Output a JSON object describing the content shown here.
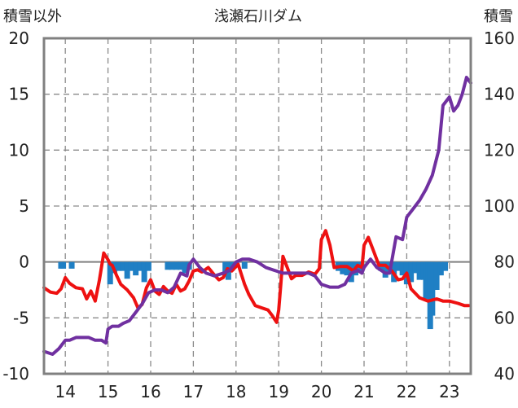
{
  "chart_data": {
    "type": "line",
    "title": "浅瀬石川ダム",
    "left_axis_label": "積雪以外",
    "right_axis_label": "積雪",
    "x_tick_labels": [
      "14",
      "15",
      "16",
      "17",
      "18",
      "19",
      "20",
      "21",
      "22",
      "23"
    ],
    "xlim": [
      13.5,
      23.5
    ],
    "left_ylim": [
      -10,
      20
    ],
    "left_ticks": [
      20,
      15,
      10,
      5,
      0,
      -5,
      -10
    ],
    "right_ylim": [
      40,
      160
    ],
    "right_ticks": [
      160,
      140,
      120,
      100,
      80,
      60,
      40
    ],
    "grid": true,
    "colors": {
      "red_series": "#ee1111",
      "purple_series": "#7030a0",
      "bars": "#1f7fc4",
      "frame": "#808080",
      "grid": "#8a8a8a"
    },
    "series": [
      {
        "axis": "left",
        "color": "#ee1111",
        "x": [
          13.5,
          13.65,
          13.8,
          13.9,
          14.0,
          14.1,
          14.25,
          14.4,
          14.5,
          14.6,
          14.7,
          14.8,
          14.9,
          15.0,
          15.05,
          15.1,
          15.2,
          15.3,
          15.45,
          15.6,
          15.7,
          15.8,
          15.9,
          16.0,
          16.1,
          16.2,
          16.3,
          16.4,
          16.5,
          16.6,
          16.7,
          16.8,
          16.9,
          17.0,
          17.1,
          17.2,
          17.35,
          17.5,
          17.6,
          17.7,
          17.8,
          17.9,
          18.0,
          18.05,
          18.1,
          18.2,
          18.3,
          18.45,
          18.6,
          18.75,
          18.85,
          18.95,
          19.0,
          19.05,
          19.1,
          19.2,
          19.3,
          19.4,
          19.55,
          19.7,
          19.85,
          19.95,
          20.0,
          20.1,
          20.2,
          20.3,
          20.45,
          20.6,
          20.75,
          20.85,
          20.95,
          21.0,
          21.1,
          21.2,
          21.35,
          21.5,
          21.65,
          21.8,
          21.9,
          22.0,
          22.1,
          22.3,
          22.5,
          22.7,
          22.85,
          23.0,
          23.2,
          23.35,
          23.45
        ],
        "y": [
          -2.3,
          -2.7,
          -2.8,
          -2.4,
          -1.4,
          -1.9,
          -2.3,
          -2.4,
          -3.3,
          -2.6,
          -3.5,
          -1.6,
          0.8,
          0.2,
          -0.2,
          -0.3,
          -1.2,
          -2.0,
          -2.5,
          -3.2,
          -4.1,
          -3.8,
          -2.3,
          -1.6,
          -2.6,
          -2.9,
          -2.2,
          -2.6,
          -2.8,
          -2.0,
          -2.6,
          -2.4,
          -1.7,
          -0.8,
          -0.7,
          -0.9,
          -0.5,
          -1.2,
          -1.6,
          -1.4,
          -0.6,
          -0.8,
          -0.4,
          -0.2,
          -0.8,
          -2.0,
          -2.9,
          -3.9,
          -4.1,
          -4.3,
          -4.8,
          -5.4,
          -4.3,
          -2.0,
          0.5,
          -0.5,
          -1.5,
          -1.2,
          -1.2,
          -0.9,
          -1.1,
          -0.6,
          2.0,
          2.8,
          1.5,
          -0.5,
          -0.4,
          -0.4,
          -0.8,
          -0.3,
          -0.5,
          1.5,
          2.2,
          1.2,
          -0.3,
          -0.3,
          -0.8,
          -1.6,
          -1.5,
          -1.0,
          -2.4,
          -3.2,
          -3.5,
          -3.3,
          -3.5,
          -3.5,
          -3.7,
          -3.9,
          -3.9
        ]
      },
      {
        "axis": "right",
        "color": "#7030a0",
        "x": [
          13.5,
          13.7,
          13.85,
          14.0,
          14.1,
          14.25,
          14.4,
          14.55,
          14.7,
          14.85,
          14.95,
          15.0,
          15.1,
          15.25,
          15.35,
          15.5,
          15.65,
          15.8,
          15.95,
          16.1,
          16.25,
          16.4,
          16.55,
          16.7,
          16.85,
          16.9,
          17.0,
          17.15,
          17.3,
          17.5,
          17.7,
          17.85,
          18.0,
          18.15,
          18.3,
          18.5,
          18.7,
          18.9,
          19.1,
          19.3,
          19.5,
          19.7,
          19.85,
          20.0,
          20.2,
          20.4,
          20.55,
          20.7,
          20.85,
          20.95,
          21.0,
          21.15,
          21.3,
          21.5,
          21.6,
          21.75,
          21.9,
          22.0,
          22.15,
          22.3,
          22.45,
          22.6,
          22.75,
          22.85,
          23.0,
          23.1,
          23.2,
          23.3,
          23.4,
          23.5
        ],
        "y": [
          48,
          47,
          49,
          52,
          52,
          53,
          53,
          53,
          52,
          52,
          51,
          56,
          57,
          57,
          58,
          59,
          62,
          65,
          69,
          70,
          70,
          69,
          71,
          76,
          75,
          79,
          81,
          78,
          76,
          75,
          76,
          77,
          80,
          81,
          81,
          80,
          78,
          77,
          76,
          76,
          76,
          76,
          75,
          72,
          71,
          71,
          72,
          76,
          77,
          76,
          78,
          81,
          78,
          76,
          76,
          89,
          88,
          96,
          99,
          102,
          106,
          111,
          120,
          136,
          139,
          134,
          136,
          140,
          146,
          144
        ]
      },
      {
        "axis": "left",
        "type": "bar",
        "color": "#1f7fc4",
        "name": "",
        "x": [
          13.9,
          13.95,
          14.15,
          15.05,
          15.15,
          15.25,
          15.35,
          15.45,
          15.55,
          15.65,
          15.75,
          15.85,
          15.95,
          16.4,
          16.5,
          16.6,
          16.7,
          16.8,
          16.9,
          17.75,
          17.82,
          17.9,
          18.2,
          20.4,
          20.5,
          20.6,
          20.7,
          20.8,
          20.9,
          21.4,
          21.5,
          21.6,
          21.7,
          21.8,
          21.9,
          22.0,
          22.1,
          22.2,
          22.3,
          22.4,
          22.45,
          22.5,
          22.55,
          22.6,
          22.7,
          22.8,
          22.9
        ],
        "y": [
          -0.6,
          -0.6,
          -0.6,
          -2.0,
          -1.0,
          -0.8,
          -0.8,
          -1.5,
          -0.8,
          -1.2,
          -0.8,
          -1.8,
          -0.8,
          -0.7,
          -0.7,
          -0.7,
          -0.7,
          -1.0,
          -0.7,
          -1.2,
          -1.6,
          -0.8,
          -0.6,
          -0.8,
          -1.1,
          -1.2,
          -1.8,
          -1.2,
          -0.8,
          -0.8,
          -1.4,
          -1.0,
          -1.8,
          -0.8,
          -1.2,
          -2.0,
          -1.8,
          -1.0,
          -1.6,
          -1.6,
          -3.3,
          -3.0,
          -6.0,
          -4.8,
          -2.5,
          -1.2,
          -0.8
        ]
      }
    ]
  }
}
